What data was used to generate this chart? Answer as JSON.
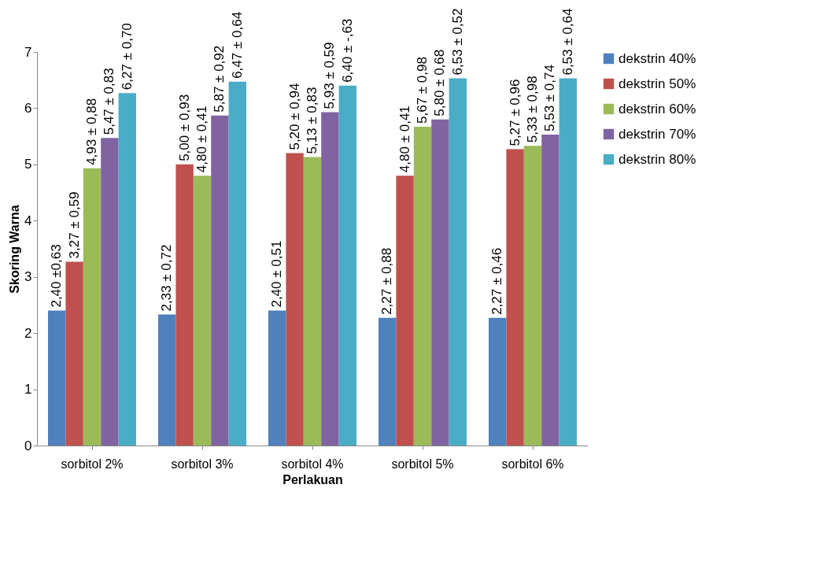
{
  "chart_data": {
    "type": "bar",
    "xlabel": "Perlakuan",
    "ylabel": "Skoring Warna",
    "categories": [
      "sorbitol 2%",
      "sorbitol 3%",
      "sorbitol 4%",
      "sorbitol 5%",
      "sorbitol 6%"
    ],
    "series": [
      {
        "name": "dekstrin 40%",
        "color": "#4f81bd",
        "values": [
          2.4,
          2.33,
          2.4,
          2.27,
          2.27
        ],
        "value_labels": [
          "2,40 ±0,63",
          "2,33 ± 0,72",
          "2,40 ± 0,51",
          "2,27 ± 0,88",
          "2,27 ± 0,46"
        ]
      },
      {
        "name": "dekstrin 50%",
        "color": "#c0504d",
        "values": [
          3.27,
          5.0,
          5.2,
          4.8,
          5.27
        ],
        "value_labels": [
          "3,27 ± 0,59",
          "5,00 ± 0,93",
          "5,20 ± 0,94",
          "4,80 ± 0,41",
          "5,27 ± 0,96"
        ]
      },
      {
        "name": "dekstrin 60%",
        "color": "#9bbb59",
        "values": [
          4.93,
          4.8,
          5.13,
          5.67,
          5.33
        ],
        "value_labels": [
          "4,93 ± 0,88",
          "4,80 ± 0,41",
          "5,13 ± 0,83",
          "5,67 ± 0,98",
          "5,33 ± 0,98"
        ]
      },
      {
        "name": "dekstrin 70%",
        "color": "#8064a2",
        "values": [
          5.47,
          5.87,
          5.93,
          5.8,
          5.53
        ],
        "value_labels": [
          "5,47 ± 0,83",
          "5,87 ± 0,92",
          "5,93 ± 0,59",
          "5,80 ± 0,68",
          "5,53 ± 0,74"
        ]
      },
      {
        "name": "dekstrin 80%",
        "color": "#4bacc6",
        "values": [
          6.27,
          6.47,
          6.4,
          6.53,
          6.53
        ],
        "value_labels": [
          "6,27 ± 0,70",
          "6,47 ± 0,64",
          "6,40 ± -,63",
          "6,53 ± 0,52",
          "6,53 ± 0,64"
        ]
      }
    ],
    "ylim": [
      0,
      7
    ],
    "yticks": [
      0,
      1,
      2,
      3,
      4,
      5,
      6,
      7
    ],
    "grid": false,
    "legend": "right"
  }
}
